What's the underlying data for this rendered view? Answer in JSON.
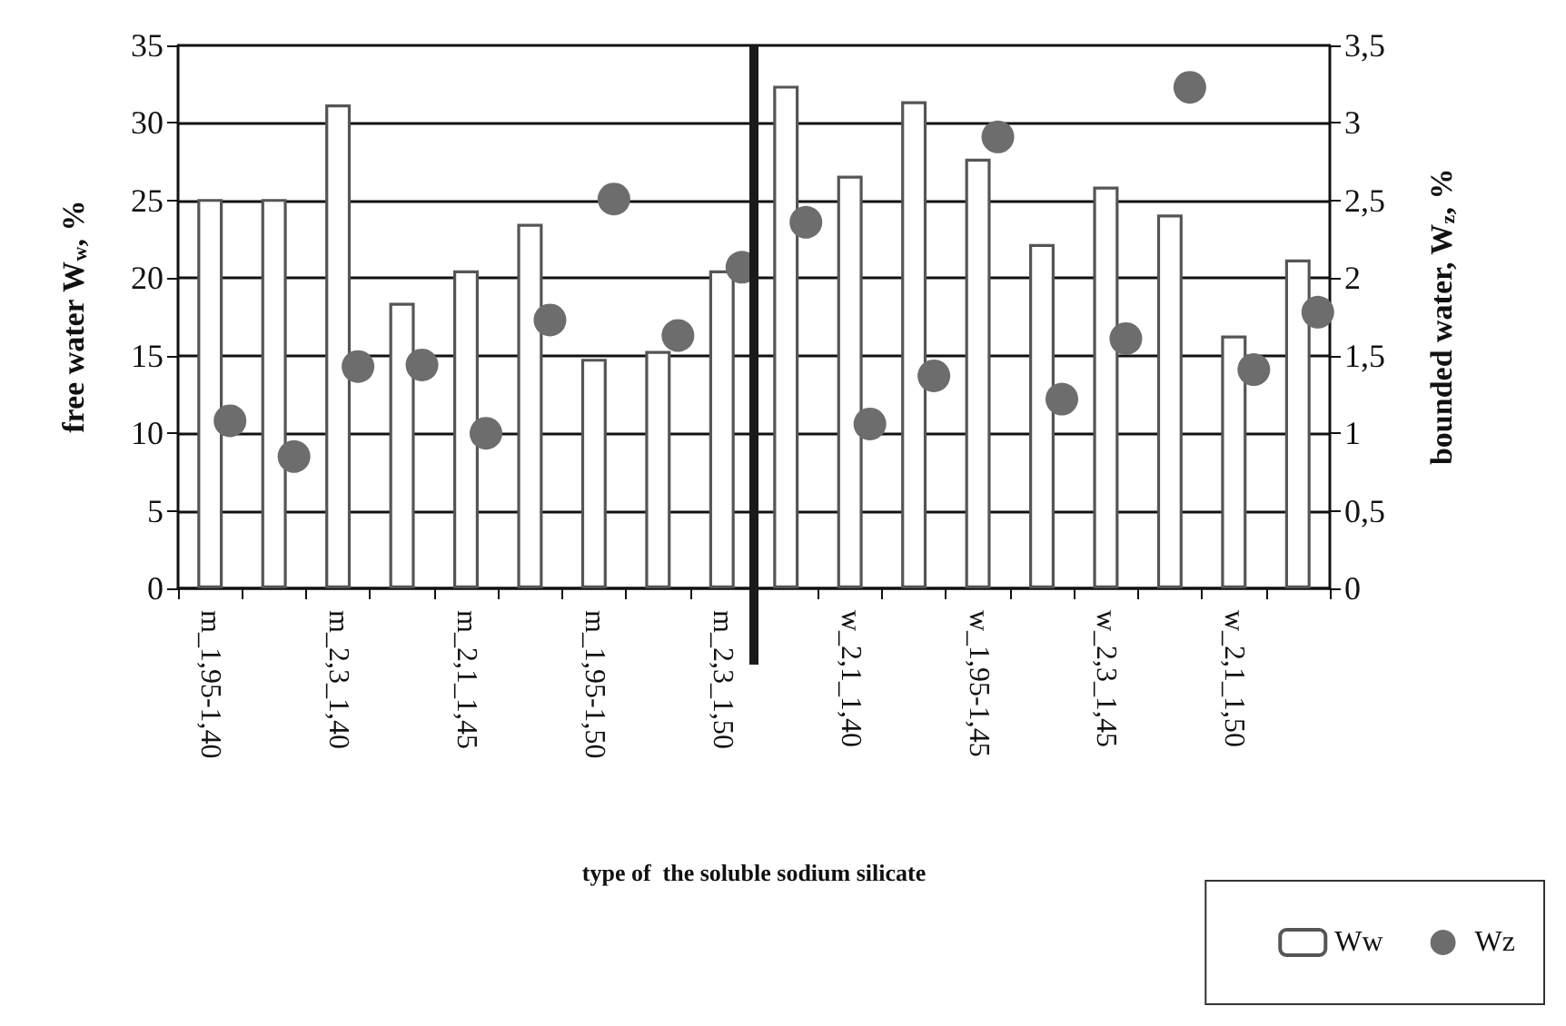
{
  "chart_data": {
    "type": "bar",
    "xlabel": "type of  the soluble sodium silicate",
    "ylabel": "free water W$_{w}$, %",
    "y2label": "bounded water, W$_{z}$, %",
    "categories": [
      "m_1,95-1,40",
      null,
      "m_2,3_1,40",
      null,
      "m_2,1_1,45",
      null,
      "m_1,95-1,50",
      null,
      "m_2,3_1,50",
      null,
      "w_2,1_1,40",
      null,
      "w_1,95-1,45",
      null,
      "w_2,3_1,45",
      null,
      "w_2,1_1,50",
      null
    ],
    "series": [
      {
        "name": "Ww",
        "color": "#555555",
        "values": [
          25.1,
          25.1,
          31.2,
          18.4,
          20.5,
          23.5,
          14.8,
          15.3,
          20.5,
          32.4,
          26.6,
          31.4,
          27.7,
          22.2,
          25.9,
          24.1,
          16.3,
          21.2
        ]
      },
      {
        "name": "Wz",
        "type": "scatter",
        "axis": "y2",
        "color": "#6d6d6d",
        "values": [
          1.08,
          0.85,
          1.43,
          1.44,
          1.0,
          1.73,
          2.51,
          1.63,
          2.07,
          2.36,
          1.06,
          1.37,
          2.91,
          1.22,
          1.61,
          3.23,
          1.41,
          1.78
        ]
      }
    ],
    "ylim": [
      0,
      35
    ],
    "yticks": [
      0,
      5,
      10,
      15,
      20,
      25,
      30,
      35
    ],
    "y2lim": [
      0,
      3.5
    ],
    "y2ticks": [
      0,
      {
        "value": 0.5,
        "label": "0,5"
      },
      1,
      {
        "value": 1.5,
        "label": "1,5"
      },
      2,
      {
        "value": 2.5,
        "label": "2,5"
      },
      3,
      {
        "value": 3.5,
        "label": "3,5"
      }
    ],
    "grid": "y",
    "legend": "bottom right",
    "marker": "circle"
  }
}
